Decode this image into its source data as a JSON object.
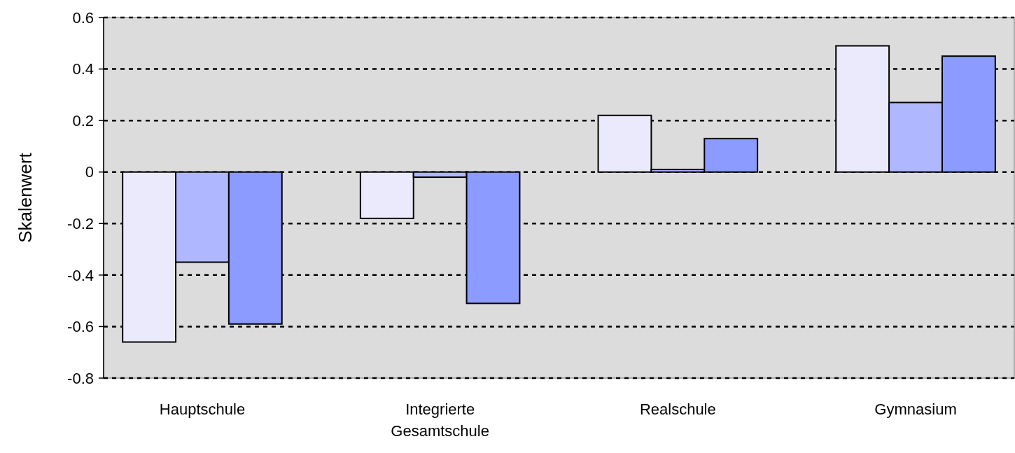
{
  "chart_data": {
    "type": "bar",
    "ylabel": "Skalenwert",
    "categories": [
      "Hauptschule",
      "Integrierte Gesamtschule",
      "Realschule",
      "Gymnasium"
    ],
    "series": [
      {
        "color": "#ebe9fc",
        "values": [
          -0.66,
          -0.18,
          0.22,
          0.49
        ]
      },
      {
        "color": "#afb7fe",
        "values": [
          -0.35,
          -0.02,
          0.01,
          0.27
        ]
      },
      {
        "color": "#8c9bff",
        "values": [
          -0.59,
          -0.51,
          0.13,
          0.45
        ]
      }
    ],
    "ylim": [
      -0.8,
      0.6
    ],
    "yticks": [
      -0.8,
      -0.6,
      -0.4,
      -0.2,
      0,
      0.2,
      0.4,
      0.6
    ],
    "grid": "y"
  }
}
